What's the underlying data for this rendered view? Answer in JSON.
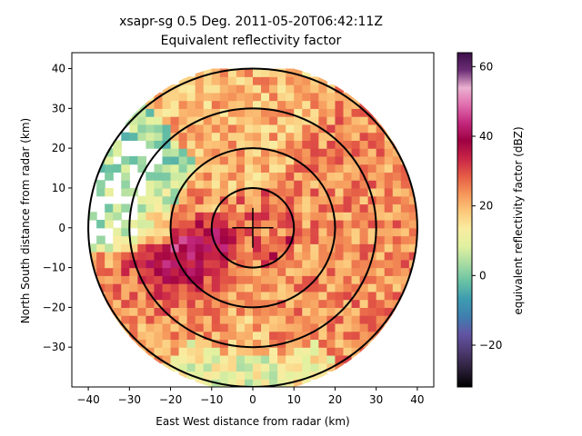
{
  "chart_data": {
    "type": "heatmap",
    "title_line1": "xsapr-sg 0.5 Deg. 2011-05-20T06:42:11Z",
    "title_line2": "Equivalent reflectivity factor",
    "xlabel": "East West distance from radar (km)",
    "ylabel": "North South distance from radar (km)",
    "xlim": [
      -44,
      44
    ],
    "ylim": [
      -40,
      44
    ],
    "x_ticks": [
      -40,
      -30,
      -20,
      -10,
      0,
      10,
      20,
      30,
      40
    ],
    "y_ticks": [
      -30,
      -20,
      -10,
      0,
      10,
      20,
      30,
      40
    ],
    "range_rings_km": [
      10,
      20,
      30,
      40
    ],
    "max_range_km": 40,
    "colorbar": {
      "label": "equivalent reflectivity factor (dBZ)",
      "range": [
        -32,
        64
      ],
      "ticks": [
        -20,
        0,
        20,
        40,
        60
      ],
      "colormap": "spectral",
      "colors": [
        "#000000",
        "#2a1f38",
        "#4c3a70",
        "#6354a3",
        "#3f7fb0",
        "#3d9cb0",
        "#69c2a3",
        "#a7dca3",
        "#e1f1a0",
        "#f9eca0",
        "#fcc77a",
        "#f59559",
        "#e55a45",
        "#c82447",
        "#9e0142",
        "#c2277c",
        "#e06cad",
        "#ebb0d1",
        "#6b2d75",
        "#3d0f4a"
      ]
    },
    "field_description": "radar PPI reflectivity; strong echoes (30-50 dBZ) west-southwest of radar, weaker 10-25 dBZ to the east, low values northwest"
  }
}
